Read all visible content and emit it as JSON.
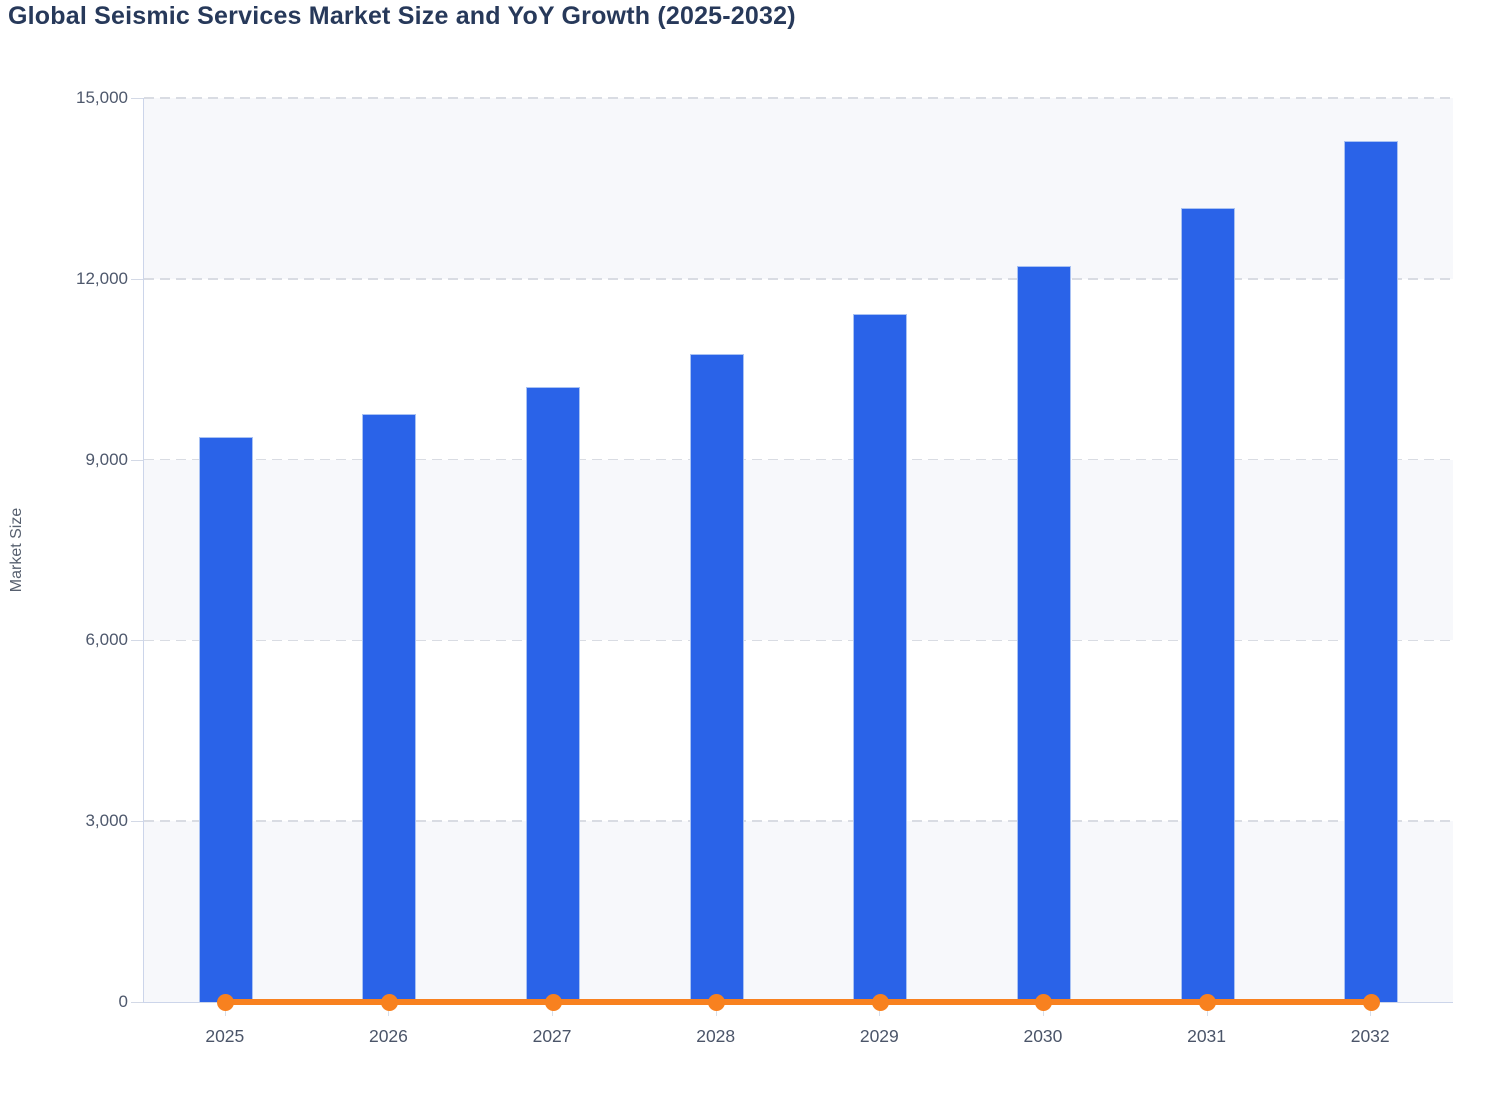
{
  "title": "Global Seismic Services Market Size and YoY Growth (2025-2032)",
  "y_axis": {
    "label": "Market Size",
    "min": 0,
    "max": 15000,
    "tick_values": [
      0,
      3000,
      6000,
      9000,
      12000,
      15000
    ],
    "tick_labels": [
      "0",
      "3,000",
      "6,000",
      "9,000",
      "12,000",
      "15,000"
    ]
  },
  "x_axis": {
    "categories": [
      "2025",
      "2026",
      "2027",
      "2028",
      "2029",
      "2030",
      "2031",
      "2032"
    ]
  },
  "chart_data": {
    "type": "combo",
    "title": "Global Seismic Services Market Size and YoY Growth (2025-2032)",
    "categories": [
      "2025",
      "2026",
      "2027",
      "2028",
      "2029",
      "2030",
      "2031",
      "2032"
    ],
    "series": [
      {
        "name": "Market Size",
        "type": "bar",
        "color": "#2a63e8",
        "values": [
          9380,
          9760,
          10210,
          10750,
          11420,
          12210,
          13170,
          14280
        ]
      },
      {
        "name": "YoY Growth",
        "type": "line",
        "color": "#f8811f",
        "values": [
          0,
          0,
          0,
          0,
          0,
          0,
          0,
          0
        ],
        "note": "Line with circular markers renders flat at ~0 on the shared Market Size axis; growth percentages are not labeled in the image."
      }
    ],
    "xlabel": "",
    "ylabel": "Market Size",
    "ylim": [
      0,
      15000
    ],
    "grid": "horizontal dashed gridlines with alternating light band shading",
    "legend": "none"
  },
  "colors": {
    "background": "#ffffff",
    "bar_fill": "#2a63e8",
    "bar_border": "#a9c2f3",
    "line_orange": "#f8811f",
    "title_text": "#27395a",
    "axis_text": "#4e586c",
    "axis_line": "#ccd5ea",
    "gridline": "#d9dce3",
    "band_tint": "#f7f8fb"
  }
}
